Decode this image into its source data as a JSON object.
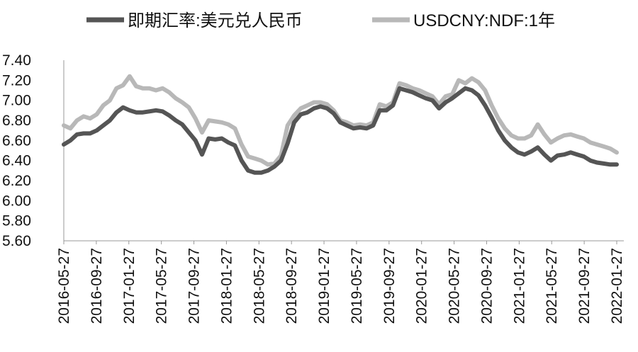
{
  "chart_data": {
    "type": "line",
    "x_ticks": [
      "2016-05-27",
      "2016-09-27",
      "2017-01-27",
      "2017-05-27",
      "2017-09-27",
      "2018-01-27",
      "2018-05-27",
      "2018-09-27",
      "2019-01-27",
      "2019-05-27",
      "2019-09-27",
      "2020-01-27",
      "2020-05-27",
      "2020-09-27",
      "2021-01-27",
      "2021-05-27",
      "2021-09-27",
      "2022-01-27"
    ],
    "y_ticks": [
      "5.60",
      "5.80",
      "6.00",
      "6.20",
      "6.40",
      "6.60",
      "6.80",
      "7.00",
      "7.20",
      "7.40"
    ],
    "ylim": [
      5.6,
      7.4
    ],
    "grid": false,
    "legend_position": "top",
    "series": [
      {
        "name": "即期汇率:美元兑人民币",
        "color": "#555555",
        "values": [
          6.56,
          6.6,
          6.66,
          6.67,
          6.67,
          6.7,
          6.75,
          6.8,
          6.88,
          6.93,
          6.9,
          6.88,
          6.88,
          6.89,
          6.9,
          6.89,
          6.85,
          6.8,
          6.76,
          6.68,
          6.6,
          6.46,
          6.62,
          6.61,
          6.62,
          6.58,
          6.55,
          6.4,
          6.3,
          6.28,
          6.28,
          6.3,
          6.34,
          6.4,
          6.57,
          6.78,
          6.86,
          6.88,
          6.92,
          6.94,
          6.92,
          6.87,
          6.78,
          6.75,
          6.72,
          6.73,
          6.72,
          6.75,
          6.9,
          6.9,
          6.95,
          7.12,
          7.1,
          7.08,
          7.05,
          7.02,
          7.0,
          6.92,
          6.98,
          7.02,
          7.07,
          7.12,
          7.1,
          7.05,
          6.95,
          6.83,
          6.7,
          6.6,
          6.53,
          6.48,
          6.46,
          6.49,
          6.53,
          6.46,
          6.4,
          6.45,
          6.46,
          6.48,
          6.46,
          6.44,
          6.4,
          6.38,
          6.37,
          6.36,
          6.36
        ]
      },
      {
        "name": "USDCNY:NDF:1年",
        "color": "#b8b8b8",
        "values": [
          6.75,
          6.72,
          6.8,
          6.84,
          6.82,
          6.86,
          6.95,
          7.0,
          7.12,
          7.15,
          7.24,
          7.14,
          7.12,
          7.12,
          7.1,
          7.12,
          7.08,
          7.02,
          6.98,
          6.93,
          6.82,
          6.68,
          6.8,
          6.79,
          6.78,
          6.76,
          6.72,
          6.56,
          6.44,
          6.42,
          6.4,
          6.36,
          6.37,
          6.45,
          6.75,
          6.85,
          6.92,
          6.95,
          6.98,
          6.98,
          6.96,
          6.9,
          6.8,
          6.78,
          6.75,
          6.76,
          6.75,
          6.78,
          6.96,
          6.94,
          6.98,
          7.17,
          7.15,
          7.12,
          7.1,
          7.07,
          7.04,
          6.96,
          7.04,
          7.06,
          7.2,
          7.17,
          7.22,
          7.18,
          7.1,
          6.95,
          6.82,
          6.72,
          6.65,
          6.62,
          6.62,
          6.65,
          6.76,
          6.66,
          6.58,
          6.62,
          6.65,
          6.66,
          6.64,
          6.62,
          6.58,
          6.56,
          6.54,
          6.52,
          6.48
        ]
      }
    ]
  }
}
